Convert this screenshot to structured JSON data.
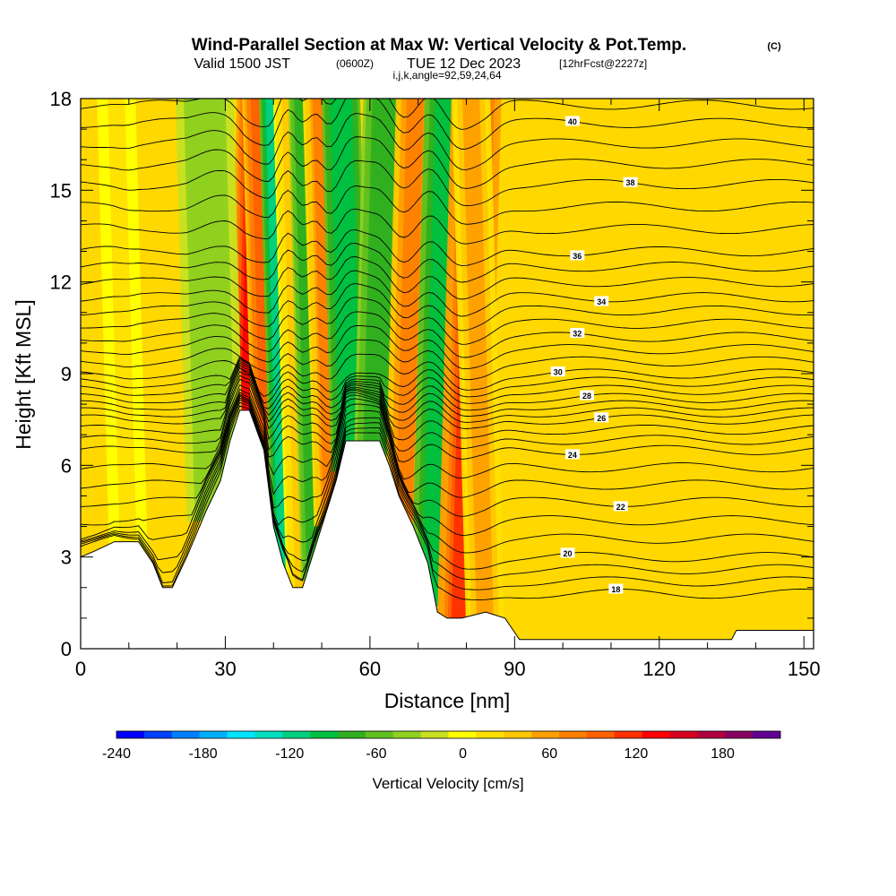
{
  "header": {
    "title": "Wind-Parallel Section at Max W: Vertical Velocity & Pot.Temp.",
    "title_unit": "(C)",
    "valid_prefix": "Valid 1500 JST",
    "valid_utc": "(0600Z)",
    "valid_date": "TUE 12 Dec 2023",
    "forecast": "[12hrFcst@2227z]",
    "indices": "i,j,k,angle=92,59,24,64"
  },
  "chart_data": {
    "type": "heatmap",
    "xlabel": "Distance [nm]",
    "ylabel": "Height [Kft MSL]",
    "xlim": [
      0,
      152
    ],
    "ylim": [
      0,
      18
    ],
    "x_ticks": [
      "0",
      "30",
      "60",
      "90",
      "120",
      "150"
    ],
    "x_tick_values": [
      0,
      30,
      60,
      90,
      120,
      150
    ],
    "y_ticks": [
      "0",
      "3",
      "6",
      "9",
      "12",
      "15",
      "18"
    ],
    "y_tick_values": [
      0,
      3,
      6,
      9,
      12,
      15,
      18
    ],
    "terrain": [
      {
        "x": 0,
        "y": 3.0
      },
      {
        "x": 3,
        "y": 3.2
      },
      {
        "x": 7,
        "y": 3.5
      },
      {
        "x": 12,
        "y": 3.5
      },
      {
        "x": 15,
        "y": 2.8
      },
      {
        "x": 17,
        "y": 2.0
      },
      {
        "x": 19,
        "y": 2.0
      },
      {
        "x": 22,
        "y": 3.0
      },
      {
        "x": 26,
        "y": 4.5
      },
      {
        "x": 29,
        "y": 5.5
      },
      {
        "x": 31,
        "y": 6.8
      },
      {
        "x": 33,
        "y": 7.8
      },
      {
        "x": 35,
        "y": 7.8
      },
      {
        "x": 38,
        "y": 6.5
      },
      {
        "x": 40,
        "y": 4.0
      },
      {
        "x": 42,
        "y": 2.8
      },
      {
        "x": 44,
        "y": 2.0
      },
      {
        "x": 46,
        "y": 2.0
      },
      {
        "x": 48,
        "y": 3.0
      },
      {
        "x": 50,
        "y": 4.0
      },
      {
        "x": 53,
        "y": 5.5
      },
      {
        "x": 55,
        "y": 6.8
      },
      {
        "x": 58,
        "y": 6.8
      },
      {
        "x": 62,
        "y": 6.8
      },
      {
        "x": 64,
        "y": 6.0
      },
      {
        "x": 66,
        "y": 5.0
      },
      {
        "x": 69,
        "y": 4.0
      },
      {
        "x": 72,
        "y": 2.8
      },
      {
        "x": 74,
        "y": 1.2
      },
      {
        "x": 76,
        "y": 1.0
      },
      {
        "x": 79,
        "y": 1.0
      },
      {
        "x": 84,
        "y": 1.2
      },
      {
        "x": 88,
        "y": 1.0
      },
      {
        "x": 91,
        "y": 0.3
      },
      {
        "x": 100,
        "y": 0.3
      },
      {
        "x": 110,
        "y": 0.3
      },
      {
        "x": 120,
        "y": 0.3
      },
      {
        "x": 130,
        "y": 0.3
      },
      {
        "x": 135,
        "y": 0.3
      },
      {
        "x": 136,
        "y": 0.6
      },
      {
        "x": 152,
        "y": 0.6
      }
    ],
    "vertical_velocity_bands": [
      {
        "x": 35,
        "half_width": 2.2,
        "value": 140
      },
      {
        "x": 39,
        "half_width": 1.6,
        "value": 110
      },
      {
        "x": 43,
        "half_width": 1.6,
        "value": -120
      },
      {
        "x": 46,
        "half_width": 1.6,
        "value": 40
      },
      {
        "x": 48.5,
        "half_width": 1.4,
        "value": -80
      },
      {
        "x": 52,
        "half_width": 1.8,
        "value": 80
      },
      {
        "x": 56,
        "half_width": 2.0,
        "value": -100
      },
      {
        "x": 61,
        "half_width": 2.2,
        "value": -70
      },
      {
        "x": 67,
        "half_width": 2.0,
        "value": 90
      },
      {
        "x": 72.5,
        "half_width": 2.0,
        "value": -90
      },
      {
        "x": 79,
        "half_width": 2.6,
        "value": 130
      },
      {
        "x": 84,
        "half_width": 2.0,
        "value": 60
      },
      {
        "x": 28,
        "half_width": 3.0,
        "value": -30
      },
      {
        "x": 10,
        "half_width": 2.0,
        "value": 20
      }
    ],
    "theta_contours": [
      {
        "level": "18",
        "base": 1.8,
        "label_x": 111
      },
      {
        "level": "20",
        "base": 3.0,
        "label_x": 101
      },
      {
        "level": "22",
        "base": 4.8,
        "label_x": 112
      },
      {
        "level": "24",
        "base": 6.5,
        "label_x": 102
      },
      {
        "level": "26",
        "base": 7.5,
        "label_x": 108
      },
      {
        "level": "28",
        "base": 8.2,
        "label_x": 105
      },
      {
        "level": "30",
        "base": 9.0,
        "label_x": 99
      },
      {
        "level": "32",
        "base": 10.2,
        "label_x": 103
      },
      {
        "level": "34",
        "base": 11.5,
        "label_x": 108
      },
      {
        "level": "36",
        "base": 13.0,
        "label_x": 103
      },
      {
        "level": "38",
        "base": 15.2,
        "label_x": 114
      },
      {
        "level": "40",
        "base": 17.2,
        "label_x": 102
      }
    ],
    "colorbar": {
      "title": "Vertical Velocity [cm/s]",
      "labels": [
        "-240",
        "-180",
        "-120",
        "-60",
        "0",
        "60",
        "120",
        "180"
      ],
      "min": -240,
      "max": 220,
      "step": 20,
      "colors": [
        "#0000ff",
        "#0040ff",
        "#0080ff",
        "#00b0ff",
        "#00e5ff",
        "#00e0c0",
        "#00d080",
        "#00c040",
        "#30b020",
        "#60c020",
        "#90d020",
        "#c8e020",
        "#ffff00",
        "#ffe000",
        "#ffc800",
        "#ffa000",
        "#ff8000",
        "#ff6000",
        "#ff3000",
        "#ff0000",
        "#d80020",
        "#b00040",
        "#880060",
        "#600090"
      ]
    }
  }
}
